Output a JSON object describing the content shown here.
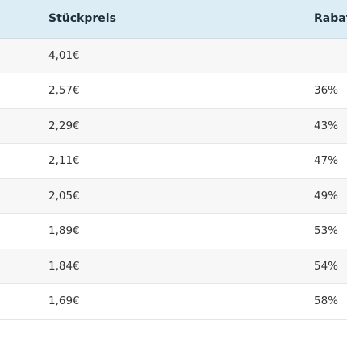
{
  "table": {
    "headers": {
      "price": "Stückpreis",
      "discount": "Rabatt"
    },
    "rows": [
      {
        "price": "4,01€",
        "discount": ""
      },
      {
        "price": "2,57€",
        "discount": "36%"
      },
      {
        "price": "2,29€",
        "discount": "43%"
      },
      {
        "price": "2,11€",
        "discount": "47%"
      },
      {
        "price": "2,05€",
        "discount": "49%"
      },
      {
        "price": "1,89€",
        "discount": "53%"
      },
      {
        "price": "1,84€",
        "discount": "54%"
      },
      {
        "price": "1,69€",
        "discount": "58%"
      }
    ]
  },
  "colors": {
    "header_bg": "#dcedf6",
    "row_alt_bg": "#f7f7f7"
  }
}
